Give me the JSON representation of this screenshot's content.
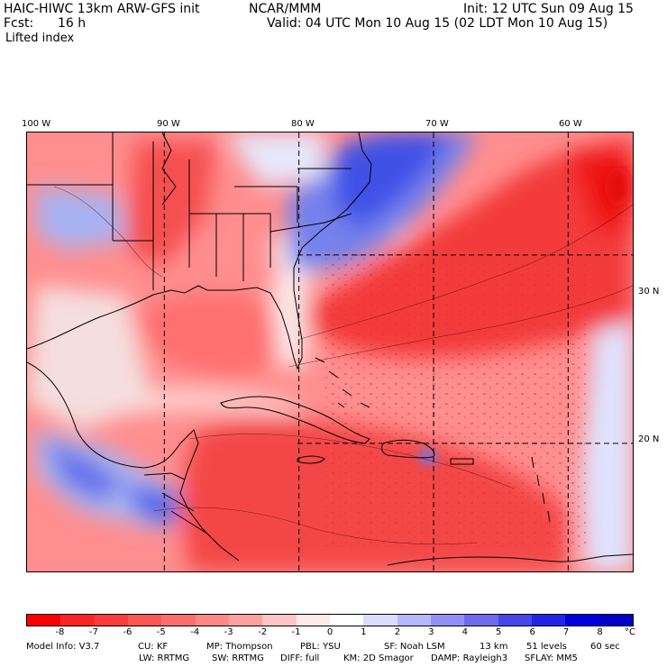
{
  "header": {
    "model": "HAIC-HIWC 13km ARW-GFS init",
    "org": "NCAR/MMM",
    "init": "Init: 12 UTC Sun 09 Aug 15",
    "fcst_label": "Fcst:",
    "fcst_value": "16 h",
    "valid": "Valid: 04 UTC Mon 10 Aug 15 (02 LDT Mon 10 Aug 15)",
    "field": "Lifted index"
  },
  "map": {
    "lon_labels": [
      "100 W",
      "90 W",
      "80 W",
      "70 W",
      "60 W"
    ],
    "lat_labels": [
      "30 N",
      "20 N"
    ],
    "lon_values": [
      -100,
      -90,
      -80,
      -70,
      -60
    ],
    "lat_values": [
      30,
      20
    ],
    "extent": {
      "west": -100.2,
      "east": -55.2,
      "north": 36.5,
      "south": 13.2
    },
    "colors": {
      "strong_unstable": "#f01616",
      "unstable": "#ff6b6b",
      "weak_unstable": "#ff9f9f",
      "neutral": "#f7ecec",
      "stable": "#9aa8f0",
      "strong_stable": "#3d4ee6",
      "land_outline": "#000000",
      "grid_line": "#000000"
    }
  },
  "colorbar": {
    "unit": "°C",
    "ticks": [
      "-8",
      "-7",
      "-6",
      "-5",
      "-4",
      "-3",
      "-2",
      "-1",
      "0",
      "1",
      "2",
      "3",
      "4",
      "5",
      "6",
      "7",
      "8"
    ],
    "colors": [
      "#ff0000",
      "#ff2424",
      "#ff3d3d",
      "#ff5656",
      "#ff6e6e",
      "#ff8787",
      "#ffa0a0",
      "#ffc4c4",
      "#ffe9e9",
      "#ffffff",
      "#dcdcff",
      "#b7b7fb",
      "#9191f5",
      "#6c6cef",
      "#4747e9",
      "#2323e3",
      "#0000dd",
      "#0000c8"
    ]
  },
  "footer": {
    "row1": [
      "Model Info: V3.7",
      "CU: KF",
      "MP: Thompson",
      "PBL: YSU",
      "SF: Noah LSM",
      "13 km",
      "51 levels",
      "60 sec"
    ],
    "row2": [
      "LW: RRTMG",
      "SW: RRTMG",
      "DIFF: full",
      "KM: 2D Smagor",
      "DAMP: Rayleigh3",
      "SFLAY: MM5"
    ]
  }
}
